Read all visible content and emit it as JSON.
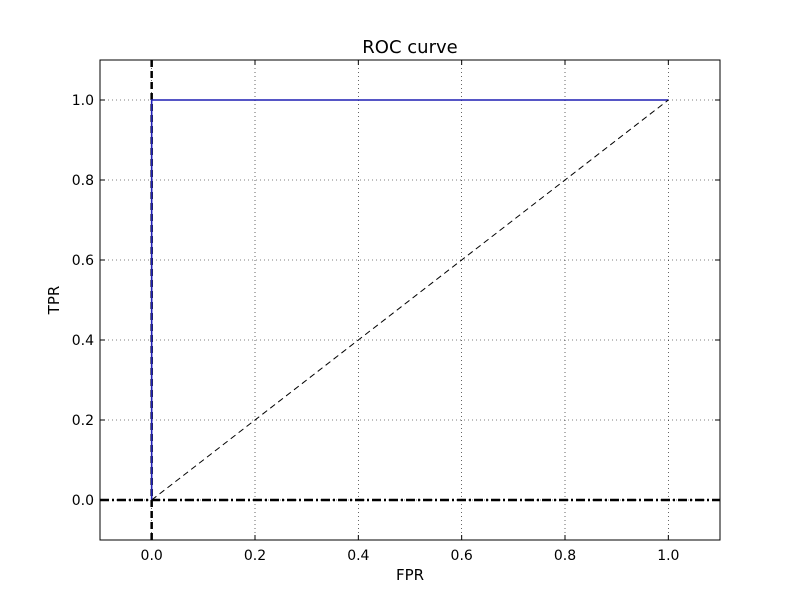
{
  "chart_data": {
    "type": "line",
    "title": "ROC curve",
    "xlabel": "FPR",
    "ylabel": "TPR",
    "xlim": [
      -0.1,
      1.1
    ],
    "ylim": [
      -0.1,
      1.1
    ],
    "grid": true,
    "x_ticks": [
      0.0,
      0.2,
      0.4,
      0.6,
      0.8,
      1.0
    ],
    "x_tick_labels": [
      "0.0",
      "0.2",
      "0.4",
      "0.6",
      "0.8",
      "1.0"
    ],
    "y_ticks": [
      0.0,
      0.2,
      0.4,
      0.6,
      0.8,
      1.0
    ],
    "y_tick_labels": [
      "0.0",
      "0.2",
      "0.4",
      "0.6",
      "0.8",
      "1.0"
    ],
    "series": [
      {
        "line_style": "solid",
        "color": "#1f1fb4",
        "x": [
          0.0,
          0.0,
          1.0
        ],
        "y": [
          0.0,
          1.0,
          1.0
        ]
      },
      {
        "line_style": "dashed",
        "color": "#000000",
        "x": [
          0.0,
          1.0
        ],
        "y": [
          0.0,
          1.0
        ]
      }
    ],
    "reference_lines": [
      {
        "orientation": "vertical",
        "value": 0.0,
        "line_style": "dashed",
        "color": "#000000"
      },
      {
        "orientation": "horizontal",
        "value": 0.0,
        "line_style": "dashdot",
        "color": "#000000"
      }
    ]
  }
}
